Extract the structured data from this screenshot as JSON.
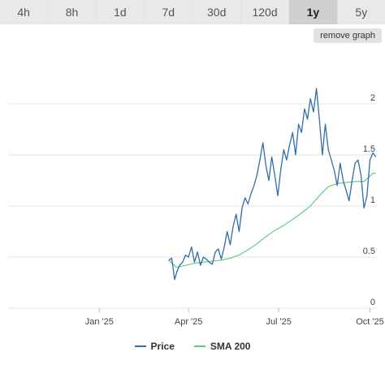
{
  "tabs": [
    {
      "label": "4h",
      "active": false
    },
    {
      "label": "8h",
      "active": false
    },
    {
      "label": "1d",
      "active": false
    },
    {
      "label": "7d",
      "active": false
    },
    {
      "label": "30d",
      "active": false
    },
    {
      "label": "120d",
      "active": false
    },
    {
      "label": "1y",
      "active": true
    },
    {
      "label": "5y",
      "active": false
    }
  ],
  "remove_graph_label": "remove graph",
  "colors": {
    "price": "#2f6eaa",
    "sma": "#56c77a",
    "grid": "#e6e6e6"
  },
  "chart_data": {
    "type": "line",
    "x_ticks": [
      "Jan '25",
      "Apr '25",
      "Jul '25",
      "Oct '25"
    ],
    "x_tick_dates": [
      "2025-01-01",
      "2025-04-01",
      "2025-07-01",
      "2025-10-01"
    ],
    "x_range": [
      "2024-10-01",
      "2025-10-08"
    ],
    "y_ticks": [
      "0",
      "0.5",
      "1",
      "1.5",
      "2"
    ],
    "ylim": [
      0,
      2.5
    ],
    "grid": true,
    "legend_position": "bottom",
    "series": [
      {
        "name": "Price",
        "x": [
          "2025-03-12",
          "2025-03-15",
          "2025-03-18",
          "2025-03-20",
          "2025-03-23",
          "2025-03-26",
          "2025-03-29",
          "2025-04-01",
          "2025-04-04",
          "2025-04-07",
          "2025-04-10",
          "2025-04-13",
          "2025-04-16",
          "2025-04-19",
          "2025-04-22",
          "2025-04-25",
          "2025-04-28",
          "2025-05-01",
          "2025-05-04",
          "2025-05-07",
          "2025-05-10",
          "2025-05-13",
          "2025-05-16",
          "2025-05-19",
          "2025-05-22",
          "2025-05-25",
          "2025-05-28",
          "2025-05-31",
          "2025-06-03",
          "2025-06-06",
          "2025-06-09",
          "2025-06-12",
          "2025-06-15",
          "2025-06-18",
          "2025-06-21",
          "2025-06-24",
          "2025-06-27",
          "2025-06-30",
          "2025-07-03",
          "2025-07-06",
          "2025-07-09",
          "2025-07-12",
          "2025-07-15",
          "2025-07-18",
          "2025-07-21",
          "2025-07-24",
          "2025-07-27",
          "2025-07-30",
          "2025-08-02",
          "2025-08-05",
          "2025-08-08",
          "2025-08-11",
          "2025-08-14",
          "2025-08-17",
          "2025-08-20",
          "2025-08-23",
          "2025-08-26",
          "2025-08-29",
          "2025-09-01",
          "2025-09-04",
          "2025-09-07",
          "2025-09-10",
          "2025-09-13",
          "2025-09-16",
          "2025-09-19",
          "2025-09-22",
          "2025-09-25",
          "2025-09-28",
          "2025-10-01",
          "2025-10-04",
          "2025-10-07"
        ],
        "values": [
          0.47,
          0.49,
          0.28,
          0.35,
          0.42,
          0.45,
          0.52,
          0.5,
          0.6,
          0.45,
          0.55,
          0.42,
          0.5,
          0.48,
          0.45,
          0.43,
          0.55,
          0.58,
          0.48,
          0.6,
          0.75,
          0.62,
          0.8,
          0.92,
          0.75,
          0.98,
          1.08,
          1.02,
          1.12,
          1.2,
          1.3,
          1.45,
          1.62,
          1.4,
          1.25,
          1.48,
          1.3,
          1.1,
          1.35,
          1.55,
          1.45,
          1.6,
          1.72,
          1.5,
          1.8,
          1.72,
          1.95,
          1.85,
          2.05,
          1.92,
          2.15,
          1.85,
          1.5,
          1.8,
          1.55,
          1.45,
          1.35,
          1.2,
          1.42,
          1.25,
          1.15,
          1.05,
          1.25,
          1.42,
          1.45,
          1.3,
          0.98,
          1.1,
          1.45,
          1.52,
          1.48
        ]
      },
      {
        "name": "SMA 200",
        "x": [
          "2025-03-12",
          "2025-03-20",
          "2025-03-29",
          "2025-04-07",
          "2025-04-16",
          "2025-04-25",
          "2025-05-04",
          "2025-05-13",
          "2025-05-22",
          "2025-05-31",
          "2025-06-09",
          "2025-06-18",
          "2025-06-27",
          "2025-07-06",
          "2025-07-15",
          "2025-07-24",
          "2025-08-02",
          "2025-08-11",
          "2025-08-20",
          "2025-08-29",
          "2025-09-07",
          "2025-09-16",
          "2025-09-25",
          "2025-10-04",
          "2025-10-07"
        ],
        "values": [
          0.47,
          0.4,
          0.42,
          0.44,
          0.45,
          0.46,
          0.47,
          0.49,
          0.52,
          0.57,
          0.63,
          0.7,
          0.76,
          0.81,
          0.87,
          0.93,
          1.0,
          1.1,
          1.19,
          1.22,
          1.23,
          1.24,
          1.24,
          1.32,
          1.32
        ]
      }
    ]
  }
}
